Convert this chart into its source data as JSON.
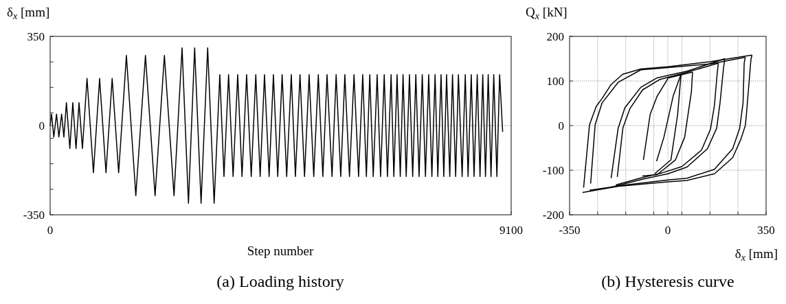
{
  "chart_data": [
    {
      "type": "line",
      "title": "(a) Loading history",
      "xlabel": "Step number",
      "ylabel": "δ$_{x}$ [mm]",
      "color": "#000000",
      "x": [
        0,
        27,
        72,
        126,
        172,
        226,
        271,
        321,
        389,
        447,
        511,
        570,
        637,
        728,
        854,
        976,
        1102,
        1224,
        1352,
        1505,
        1691,
        1881,
        2071,
        2255,
        2445,
        2604,
        2730,
        2852,
        2979,
        3109,
        3237,
        3349,
        3431,
        3522,
        3611,
        3702,
        3787,
        3878,
        3969,
        4059,
        4145,
        4231,
        4322,
        4407,
        4492,
        4579,
        4669,
        4760,
        4841,
        4932,
        5021,
        5112,
        5203,
        5293,
        5383,
        5465,
        5564,
        5645,
        5736,
        5817,
        5908,
        5998,
        6088,
        6170,
        6242,
        6309,
        6377,
        6455,
        6522,
        6594,
        6658,
        6730,
        6784,
        6848,
        6911,
        6966,
        7028,
        7092,
        7156,
        7218,
        7282,
        7345,
        7408,
        7472,
        7535,
        7598,
        7652,
        7716,
        7770,
        7825,
        7888,
        7942,
        8004,
        8059,
        8132,
        8194,
        8249,
        8312,
        8367,
        8430,
        8485,
        8539,
        8593,
        8647,
        8702,
        8756,
        8818,
        8872,
        8932
      ],
      "values": [
        0,
        45,
        -45,
        45,
        -45,
        45,
        -45,
        90,
        -90,
        90,
        -90,
        90,
        -90,
        185,
        -185,
        185,
        -185,
        185,
        -185,
        275,
        -275,
        275,
        -275,
        275,
        -275,
        305,
        -305,
        305,
        -305,
        305,
        -305,
        200,
        -200,
        200,
        -200,
        200,
        -200,
        200,
        -200,
        200,
        -200,
        200,
        -200,
        200,
        -200,
        200,
        -200,
        200,
        -200,
        200,
        -200,
        200,
        -200,
        200,
        -200,
        200,
        -200,
        200,
        -200,
        200,
        -200,
        200,
        -200,
        200,
        -200,
        200,
        -200,
        200,
        -200,
        200,
        -200,
        200,
        -200,
        200,
        -200,
        200,
        -200,
        200,
        -200,
        200,
        -200,
        200,
        -200,
        200,
        -200,
        200,
        -200,
        200,
        -200,
        200,
        -200,
        200,
        -200,
        200,
        -200,
        200,
        -200,
        200,
        -200,
        200,
        -200,
        200,
        -200,
        200,
        -200,
        200,
        -200,
        200,
        -25
      ],
      "xlim": [
        0,
        9100
      ],
      "xticks": [
        0,
        9100
      ],
      "ylim": [
        -350,
        350
      ],
      "yticks": [
        -350,
        {
          "value": -250,
          "label": null
        },
        {
          "value": -150,
          "label": null
        },
        {
          "value": -50,
          "label": null
        },
        0,
        {
          "value": 50,
          "label": null
        },
        {
          "value": 150,
          "label": null
        },
        {
          "value": 250,
          "label": null
        },
        350
      ],
      "ref_lines": [
        {
          "axis": "y",
          "value": 0,
          "color": "#808080",
          "line_style": "dotted"
        }
      ]
    },
    {
      "type": "line",
      "title": "(b) Hysteresis curve",
      "xlabel": "δ$_{x}$ [mm]",
      "ylabel": "Q$_{x}$ [kN]",
      "grid": true,
      "series": [
        {
          "color": "#000000",
          "x": [
            -300,
            -279,
            -255,
            -234,
            -202,
            -161,
            -96,
            0,
            149,
            300
          ],
          "values": [
            -139,
            2,
            43,
            61,
            92,
            115,
            127,
            132,
            143,
            158
          ]
        },
        {
          "color": "#000000",
          "x": [
            300,
            296,
            280,
            276,
            260,
            231,
            166,
            68,
            0,
            -177,
            -304
          ],
          "values": [
            158,
            148,
            25,
            0,
            -31,
            -72,
            -108,
            -123,
            -126,
            -136,
            -150
          ]
        },
        {
          "color": "#000000",
          "x": [
            -275,
            -259,
            -234,
            -177,
            -96,
            0,
            150,
            276
          ],
          "values": [
            -130,
            2,
            51,
            97,
            125,
            130,
            138,
            153
          ]
        },
        {
          "color": "#000000",
          "x": [
            276,
            272,
            268,
            256,
            231,
            166,
            68,
            0,
            -150,
            -279
          ],
          "values": [
            153,
            140,
            51,
            -6,
            -52,
            -98,
            -118,
            -122,
            -133,
            -145
          ]
        },
        {
          "color": "#000000",
          "x": [
            -202,
            -177,
            -153,
            -96,
            -38,
            68,
            203
          ],
          "values": [
            -118,
            -6,
            40,
            86,
            107,
            122,
            150
          ]
        },
        {
          "color": "#000000",
          "x": [
            203,
            198,
            186,
            174,
            141,
            68,
            0,
            -96,
            -206
          ],
          "values": [
            150,
            127,
            51,
            -6,
            -52,
            -93,
            -108,
            -121,
            -139
          ]
        },
        {
          "color": "#000000",
          "x": [
            -180,
            -160,
            -135,
            -90,
            -30,
            60,
            180
          ],
          "values": [
            -115,
            -5,
            38,
            80,
            103,
            118,
            140
          ]
        },
        {
          "color": "#000000",
          "x": [
            180,
            176,
            166,
            152,
            120,
            50,
            -20,
            -100,
            -185
          ],
          "values": [
            140,
            118,
            45,
            -8,
            -55,
            -92,
            -106,
            -118,
            -133
          ]
        },
        {
          "color": "#000000",
          "x": [
            -87,
            -63,
            -38,
            2,
            88
          ],
          "values": [
            -77,
            25,
            66,
            107,
            120
          ]
        },
        {
          "color": "#000000",
          "x": [
            88,
            84,
            60,
            27,
            -38,
            -91
          ],
          "values": [
            120,
            76,
            -26,
            -77,
            -110,
            -113
          ]
        },
        {
          "color": "#000000",
          "x": [
            -40,
            -14,
            19,
            47
          ],
          "values": [
            -80,
            -26,
            66,
            115
          ]
        },
        {
          "color": "#000000",
          "x": [
            47,
            35,
            11,
            -47
          ],
          "values": [
            115,
            25,
            -77,
            -108
          ]
        }
      ],
      "xlim": [
        -350,
        350
      ],
      "xticks": [
        -350,
        {
          "value": -250,
          "label": null
        },
        {
          "value": -150,
          "label": null
        },
        {
          "value": -50,
          "label": null
        },
        0,
        {
          "value": 50,
          "label": null
        },
        {
          "value": 150,
          "label": null
        },
        {
          "value": 250,
          "label": null
        },
        350
      ],
      "ylim": [
        -200,
        200
      ],
      "yticks": [
        -200,
        -100,
        0,
        100,
        200
      ]
    }
  ]
}
